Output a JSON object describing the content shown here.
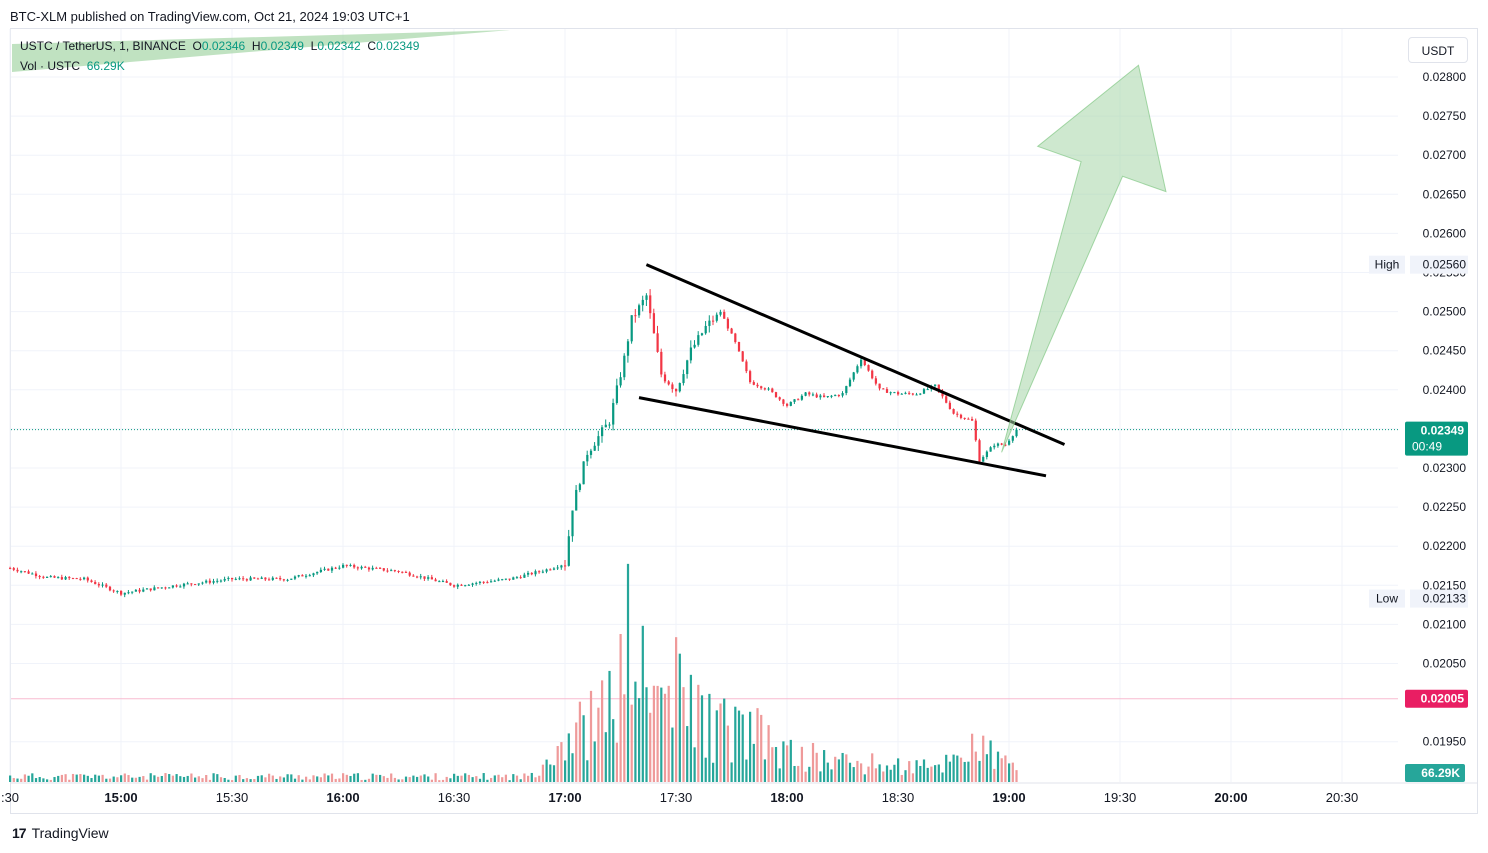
{
  "header": {
    "published_text": "BTC-XLM published on TradingView.com, Oct 21, 2024 19:03 UTC+1"
  },
  "legend": {
    "symbol_line": "USTC / TetherUS, 1, BINANCE",
    "o_label": "O",
    "o_value": "0.02346",
    "h_label": "H",
    "h_value": "0.02349",
    "l_label": "L",
    "l_value": "0.02342",
    "c_label": "C",
    "c_value": "0.02349",
    "vol_label": "Vol · USTC",
    "vol_value": "66.29K"
  },
  "currency_button": "USDT",
  "footer": {
    "logo_text": "TradingView"
  },
  "colors": {
    "up": "#089981",
    "down": "#f23645",
    "vol_up": "#26a69a",
    "vol_down": "#ef9a9a",
    "arrow_fill": "#a5d6a7",
    "current_price_bg": "#089981",
    "low_line_bg": "#e91e63"
  },
  "chart_data": {
    "type": "candlestick",
    "y_axis": {
      "ticks": [
        "0.02800",
        "0.02750",
        "0.02700",
        "0.02650",
        "0.02600",
        "0.02550",
        "0.02500",
        "0.02450",
        "0.02400",
        "0.02350",
        "0.02300",
        "0.02250",
        "0.02200",
        "0.02150",
        "0.02100",
        "0.02050",
        "0.01950"
      ],
      "range": [
        0.019,
        0.0283
      ]
    },
    "x_axis": {
      "ticks": [
        ":30",
        "15:00",
        "15:30",
        "16:00",
        "16:30",
        "17:00",
        "17:30",
        "18:00",
        "18:30",
        "19:00",
        "19:30",
        "20:00",
        "20:30"
      ],
      "bold_ticks": [
        "15:00",
        "16:00",
        "17:00",
        "18:00",
        "19:00",
        "20:00"
      ]
    },
    "markers": {
      "high_label": "High",
      "high_value": "0.02560",
      "low_label": "Low",
      "low_value": "0.02133",
      "current_price": "0.02349",
      "countdown": "00:49",
      "line_price": "0.02005",
      "volume_label": "66.29K"
    },
    "price_path": [
      [
        "14:30",
        0.02172
      ],
      [
        "14:40",
        0.0216
      ],
      [
        "14:50",
        0.02158
      ],
      [
        "15:00",
        0.0214
      ],
      [
        "15:15",
        0.0215
      ],
      [
        "15:30",
        0.02158
      ],
      [
        "15:45",
        0.02158
      ],
      [
        "16:00",
        0.02175
      ],
      [
        "16:15",
        0.02168
      ],
      [
        "16:30",
        0.0215
      ],
      [
        "16:45",
        0.02158
      ],
      [
        "16:55",
        0.0217
      ],
      [
        "17:00",
        0.02178
      ],
      [
        "17:02",
        0.0225
      ],
      [
        "17:06",
        0.0232
      ],
      [
        "17:12",
        0.0236
      ],
      [
        "17:16",
        0.0244
      ],
      [
        "17:18",
        0.0249
      ],
      [
        "17:22",
        0.0252
      ],
      [
        "17:26",
        0.0242
      ],
      [
        "17:30",
        0.024
      ],
      [
        "17:34",
        0.0245
      ],
      [
        "17:38",
        0.0248
      ],
      [
        "17:42",
        0.025
      ],
      [
        "17:46",
        0.0246
      ],
      [
        "17:50",
        0.0241
      ],
      [
        "17:55",
        0.024
      ],
      [
        "18:00",
        0.0238
      ],
      [
        "18:05",
        0.02395
      ],
      [
        "18:10",
        0.0239
      ],
      [
        "18:15",
        0.02395
      ],
      [
        "18:20",
        0.0244
      ],
      [
        "18:25",
        0.024
      ],
      [
        "18:30",
        0.02395
      ],
      [
        "18:35",
        0.02395
      ],
      [
        "18:40",
        0.02405
      ],
      [
        "18:45",
        0.0237
      ],
      [
        "18:50",
        0.0236
      ],
      [
        "18:52",
        0.0231
      ],
      [
        "18:56",
        0.0233
      ],
      [
        "18:59",
        0.0233
      ],
      [
        "19:02",
        0.02349
      ]
    ],
    "volume_profile": [
      [
        "14:30",
        6
      ],
      [
        "16:50",
        6
      ],
      [
        "17:00",
        50
      ],
      [
        "17:10",
        70
      ],
      [
        "17:15",
        110
      ],
      [
        "17:18",
        170
      ],
      [
        "17:22",
        90
      ],
      [
        "17:30",
        100
      ],
      [
        "17:40",
        60
      ],
      [
        "17:50",
        55
      ],
      [
        "18:00",
        30
      ],
      [
        "18:20",
        20
      ],
      [
        "18:40",
        15
      ],
      [
        "18:50",
        40
      ],
      [
        "19:00",
        18
      ]
    ],
    "pattern": {
      "upper_line": {
        "from": [
          "17:22",
          0.0256
        ],
        "to": [
          "19:15",
          0.0233
        ]
      },
      "lower_line": {
        "from": [
          "17:20",
          0.0239
        ],
        "to": [
          "19:10",
          0.0229
        ]
      },
      "arrow": {
        "from": [
          "18:58",
          0.0232
        ],
        "to": [
          "19:35",
          0.02815
        ]
      }
    },
    "grid": true
  }
}
